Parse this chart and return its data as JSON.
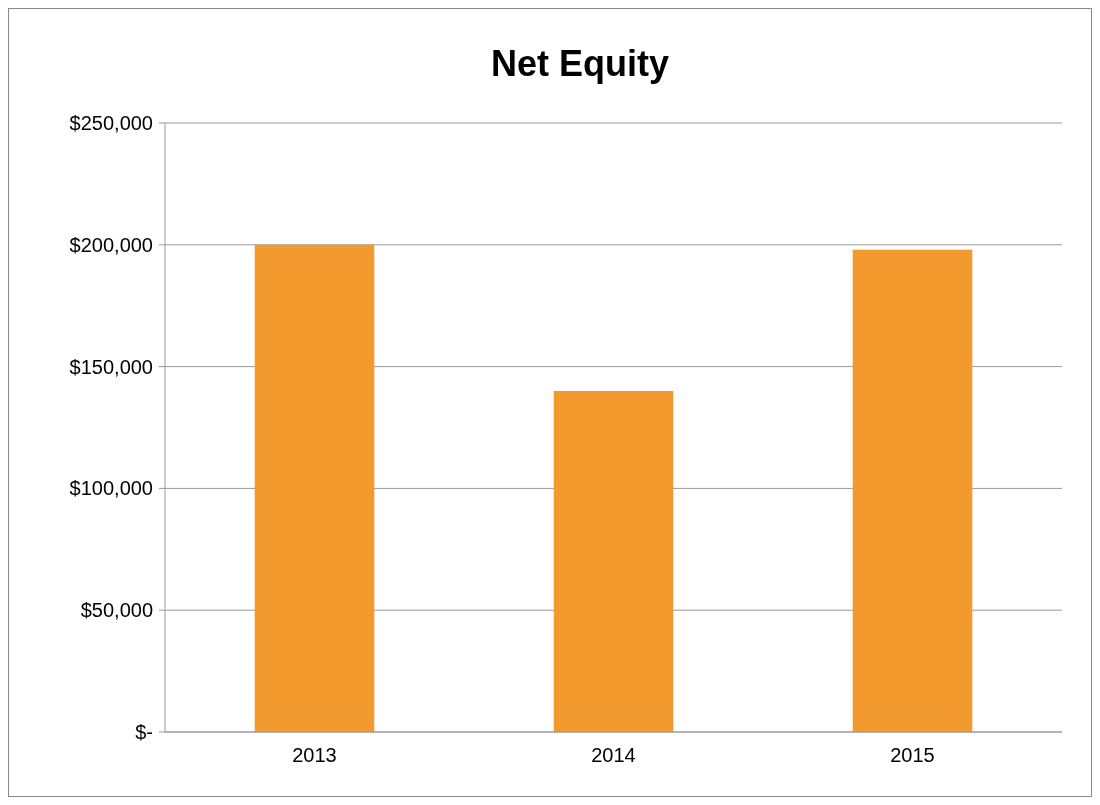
{
  "chart_data": {
    "type": "bar",
    "title": "Net Equity",
    "categories": [
      "2013",
      "2014",
      "2015"
    ],
    "values": [
      200000,
      140000,
      198000
    ],
    "color": "#f39a2e",
    "ylim": [
      0,
      250000
    ],
    "yticks": [
      {
        "value": 0,
        "label": "$-"
      },
      {
        "value": 50000,
        "label": "$50,000"
      },
      {
        "value": 100000,
        "label": "$100,000"
      },
      {
        "value": 150000,
        "label": "$150,000"
      },
      {
        "value": 200000,
        "label": "$200,000"
      },
      {
        "value": 250000,
        "label": "$250,000"
      }
    ],
    "grid": "y"
  }
}
